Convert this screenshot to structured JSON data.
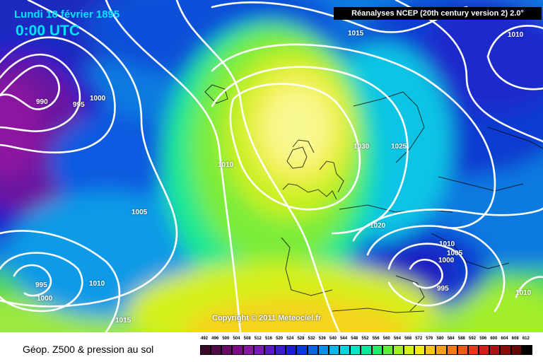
{
  "header": {
    "date": "Lundi 18 février 1895",
    "time": "0:00 UTC",
    "source": "Réanalyses NCEP (20th century version 2) 2.0°"
  },
  "copyright": "Copyright © 2011 Meteociel.fr",
  "footer": {
    "caption": "Géop. Z500 & pression au sol"
  },
  "isobar_labels": [
    {
      "text": "1015"
    },
    {
      "text": "1010"
    },
    {
      "text": "990"
    },
    {
      "text": "995"
    },
    {
      "text": "1000"
    },
    {
      "text": "1010"
    },
    {
      "text": "1005"
    },
    {
      "text": "1030"
    },
    {
      "text": "1025"
    },
    {
      "text": "1020"
    },
    {
      "text": "1010"
    },
    {
      "text": "1005"
    },
    {
      "text": "1000"
    },
    {
      "text": "995"
    },
    {
      "text": "1010"
    },
    {
      "text": "995"
    },
    {
      "text": "1000"
    },
    {
      "text": "1010"
    },
    {
      "text": "1015"
    }
  ],
  "color_scale": {
    "ticks": [
      "492",
      "496",
      "500",
      "504",
      "508",
      "512",
      "516",
      "520",
      "524",
      "528",
      "532",
      "536",
      "540",
      "544",
      "548",
      "552",
      "556",
      "560",
      "564",
      "568",
      "572",
      "576",
      "580",
      "584",
      "588",
      "592",
      "596",
      "600",
      "604",
      "608",
      "612"
    ],
    "colors": [
      "#3a0a2a",
      "#520a46",
      "#6b0a66",
      "#800a86",
      "#8a16a2",
      "#7c1ab4",
      "#5a1cc0",
      "#3a1ec8",
      "#1c1ed0",
      "#0a3ad8",
      "#0a64e0",
      "#0a90e8",
      "#0ab6ea",
      "#0ad2e0",
      "#0ae4c4",
      "#0ae89a",
      "#2aea6a",
      "#62ec3a",
      "#a2ee2a",
      "#d4f01a",
      "#f4ea1a",
      "#f8c61a",
      "#f8a01a",
      "#f47a1a",
      "#ee5a1a",
      "#e43a1a",
      "#cc221a",
      "#aa1414",
      "#880c0c",
      "#660606",
      "#000000"
    ]
  }
}
